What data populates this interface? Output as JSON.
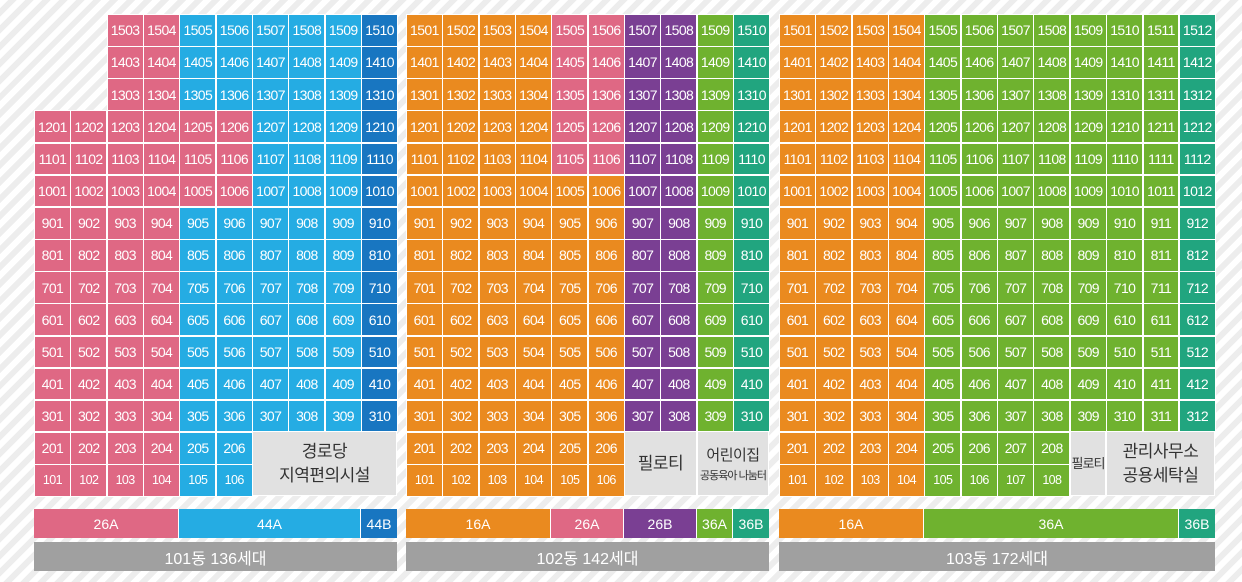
{
  "colors": {
    "pink": "#df6884",
    "blue": "#25ace3",
    "navy": "#1876c1",
    "orange": "#ea8a1f",
    "purple": "#7a3f93",
    "green": "#6fb22f",
    "teal": "#21a57f",
    "facility_bg": "#e1e1e1",
    "footer_bg": "#a0a0a0"
  },
  "buildings": [
    {
      "id": "101",
      "footer": "101동 136세대",
      "legend": [
        {
          "label": "26A",
          "color": "pink"
        },
        {
          "label": "44A",
          "color": "blue"
        },
        {
          "label": "44B",
          "color": "navy"
        }
      ],
      "columns": [
        {
          "line": "01",
          "color": "pink",
          "floors": [
            1,
            12
          ]
        },
        {
          "line": "02",
          "color": "pink",
          "floors": [
            1,
            12
          ]
        },
        {
          "line": "03",
          "color": "pink",
          "floors": [
            1,
            15
          ]
        },
        {
          "line": "04",
          "color": "pink",
          "floors": [
            1,
            15
          ]
        },
        {
          "line": "05",
          "color": "blue",
          "floors": [
            1,
            15
          ]
        },
        {
          "line": "06",
          "color": "blue",
          "floors": [
            1,
            15
          ]
        },
        {
          "line": "07",
          "color": "blue",
          "floors": [
            3,
            15
          ]
        },
        {
          "line": "08",
          "color": "blue",
          "floors": [
            3,
            15
          ]
        },
        {
          "line": "09",
          "color": "blue",
          "floors": [
            3,
            15
          ]
        },
        {
          "line": "10",
          "color": "navy",
          "floors": [
            3,
            15
          ]
        }
      ],
      "overrides": [
        {
          "floors": [
            10,
            12
          ],
          "from": 5,
          "to": 6,
          "color": "pink"
        }
      ],
      "facilities": [
        {
          "lines": [
            "경로당",
            "지역편의시설"
          ],
          "styles": [
            "l",
            "l"
          ]
        }
      ]
    },
    {
      "id": "102",
      "footer": "102동 142세대",
      "legend": [
        {
          "label": "16A",
          "color": "orange"
        },
        {
          "label": "26A",
          "color": "pink"
        },
        {
          "label": "26B",
          "color": "purple"
        },
        {
          "label": "36A",
          "color": "green"
        },
        {
          "label": "36B",
          "color": "teal"
        }
      ],
      "columns": [
        {
          "line": "01",
          "color": "orange",
          "floors": [
            1,
            15
          ]
        },
        {
          "line": "02",
          "color": "orange",
          "floors": [
            1,
            15
          ]
        },
        {
          "line": "03",
          "color": "orange",
          "floors": [
            1,
            15
          ]
        },
        {
          "line": "04",
          "color": "orange",
          "floors": [
            1,
            15
          ]
        },
        {
          "line": "05",
          "color": "pink",
          "floors": [
            1,
            15
          ]
        },
        {
          "line": "06",
          "color": "pink",
          "floors": [
            1,
            15
          ]
        },
        {
          "line": "07",
          "color": "purple",
          "floors": [
            3,
            15
          ]
        },
        {
          "line": "08",
          "color": "purple",
          "floors": [
            3,
            15
          ]
        },
        {
          "line": "09",
          "color": "green",
          "floors": [
            3,
            15
          ]
        },
        {
          "line": "10",
          "color": "teal",
          "floors": [
            3,
            15
          ]
        }
      ],
      "overrides": [
        {
          "floors": [
            1,
            10
          ],
          "from": 5,
          "to": 6,
          "color": "orange"
        }
      ],
      "facilities": [
        {
          "lines": [
            "필로티"
          ],
          "styles": [
            "l"
          ]
        },
        {
          "lines": [
            "어린이집",
            "공동육아 나눔터"
          ],
          "styles": [
            "l",
            "s"
          ]
        }
      ]
    },
    {
      "id": "103",
      "footer": "103동 172세대",
      "legend": [
        {
          "label": "16A",
          "color": "orange"
        },
        {
          "label": "36A",
          "color": "green"
        },
        {
          "label": "36B",
          "color": "teal"
        }
      ],
      "columns": [
        {
          "line": "01",
          "color": "orange",
          "floors": [
            1,
            15
          ]
        },
        {
          "line": "02",
          "color": "orange",
          "floors": [
            1,
            15
          ]
        },
        {
          "line": "03",
          "color": "orange",
          "floors": [
            1,
            15
          ]
        },
        {
          "line": "04",
          "color": "orange",
          "floors": [
            1,
            15
          ]
        },
        {
          "line": "05",
          "color": "green",
          "floors": [
            1,
            15
          ]
        },
        {
          "line": "06",
          "color": "green",
          "floors": [
            1,
            15
          ]
        },
        {
          "line": "07",
          "color": "green",
          "floors": [
            1,
            15
          ]
        },
        {
          "line": "08",
          "color": "green",
          "floors": [
            1,
            15
          ]
        },
        {
          "line": "09",
          "color": "green",
          "floors": [
            3,
            15
          ]
        },
        {
          "line": "10",
          "color": "green",
          "floors": [
            3,
            15
          ]
        },
        {
          "line": "11",
          "color": "green",
          "floors": [
            3,
            15
          ]
        },
        {
          "line": "12",
          "color": "teal",
          "floors": [
            3,
            15
          ]
        }
      ],
      "overrides": [],
      "facilities": [
        {
          "lines": [
            "필로티"
          ],
          "styles": [
            "s2"
          ]
        },
        {
          "lines": [
            "관리사무소",
            "공용세탁실"
          ],
          "styles": [
            "l",
            "l"
          ]
        }
      ]
    }
  ]
}
